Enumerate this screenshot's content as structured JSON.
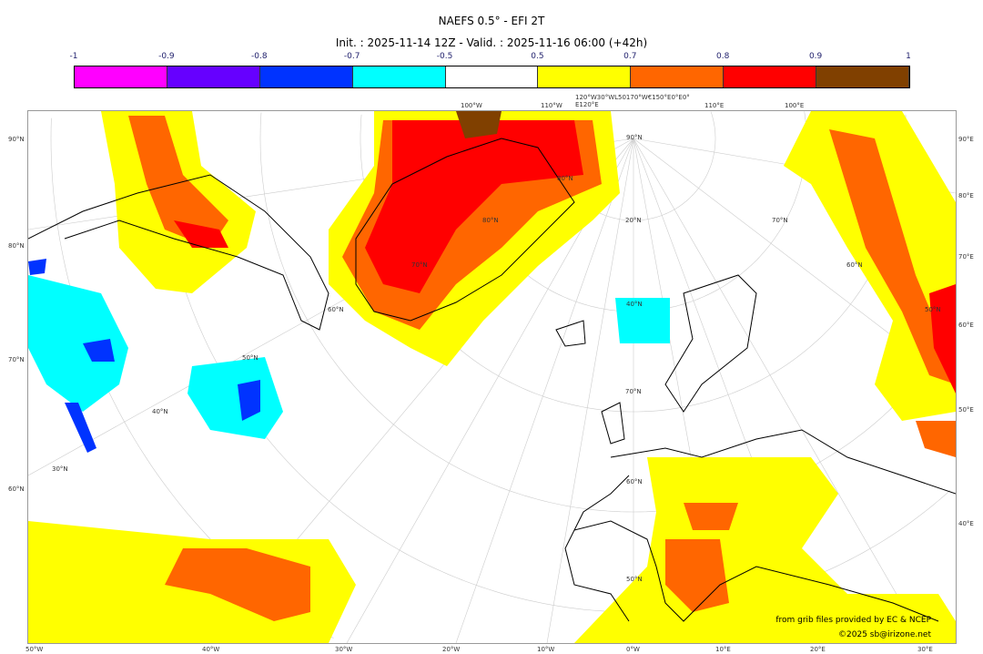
{
  "title": "NAEFS 0.5° - EFI 2T",
  "subtitle": "Init. : 2025-11-14 12Z - Valid. : 2025-11-16 06:00 (+42h)",
  "colorbar": {
    "ticks": [
      "-1",
      "-0.9",
      "-0.8",
      "-0.7",
      "-0.5",
      "0.5",
      "0.7",
      "0.8",
      "0.9",
      "1"
    ],
    "colors": [
      "#ff00ff",
      "#6600ff",
      "#0033ff",
      "#00ffff",
      "#ffffff",
      "#ffff00",
      "#ff6600",
      "#ff0000",
      "#804000"
    ]
  },
  "axes": {
    "bottom": [
      "50°W",
      "40°W",
      "30°W",
      "20°W",
      "10°W",
      "0°W",
      "10°E",
      "20°E",
      "30°E"
    ],
    "left": [
      "90°N",
      "80°N",
      "70°N",
      "60°N"
    ],
    "right": [
      "90°E",
      "80°E",
      "70°E",
      "60°E",
      "50°E",
      "40°E"
    ],
    "top": [
      "100°W",
      "110°W",
      "120°W30°WL50170°W€150°E0°E0°E120°E",
      "110°E",
      "100°E"
    ],
    "interior": [
      "90°N",
      "80°N",
      "70°N",
      "60°N",
      "50°N",
      "40°N",
      "30°N",
      "20°N",
      "80°N",
      "70°N",
      "60°N",
      "50°N",
      "40°N",
      "70°N",
      "60°N",
      "50°N"
    ]
  },
  "credits": {
    "source": "from grib files provided by EC & NCEP",
    "copyright": "©2025 sb@irizone.net"
  }
}
